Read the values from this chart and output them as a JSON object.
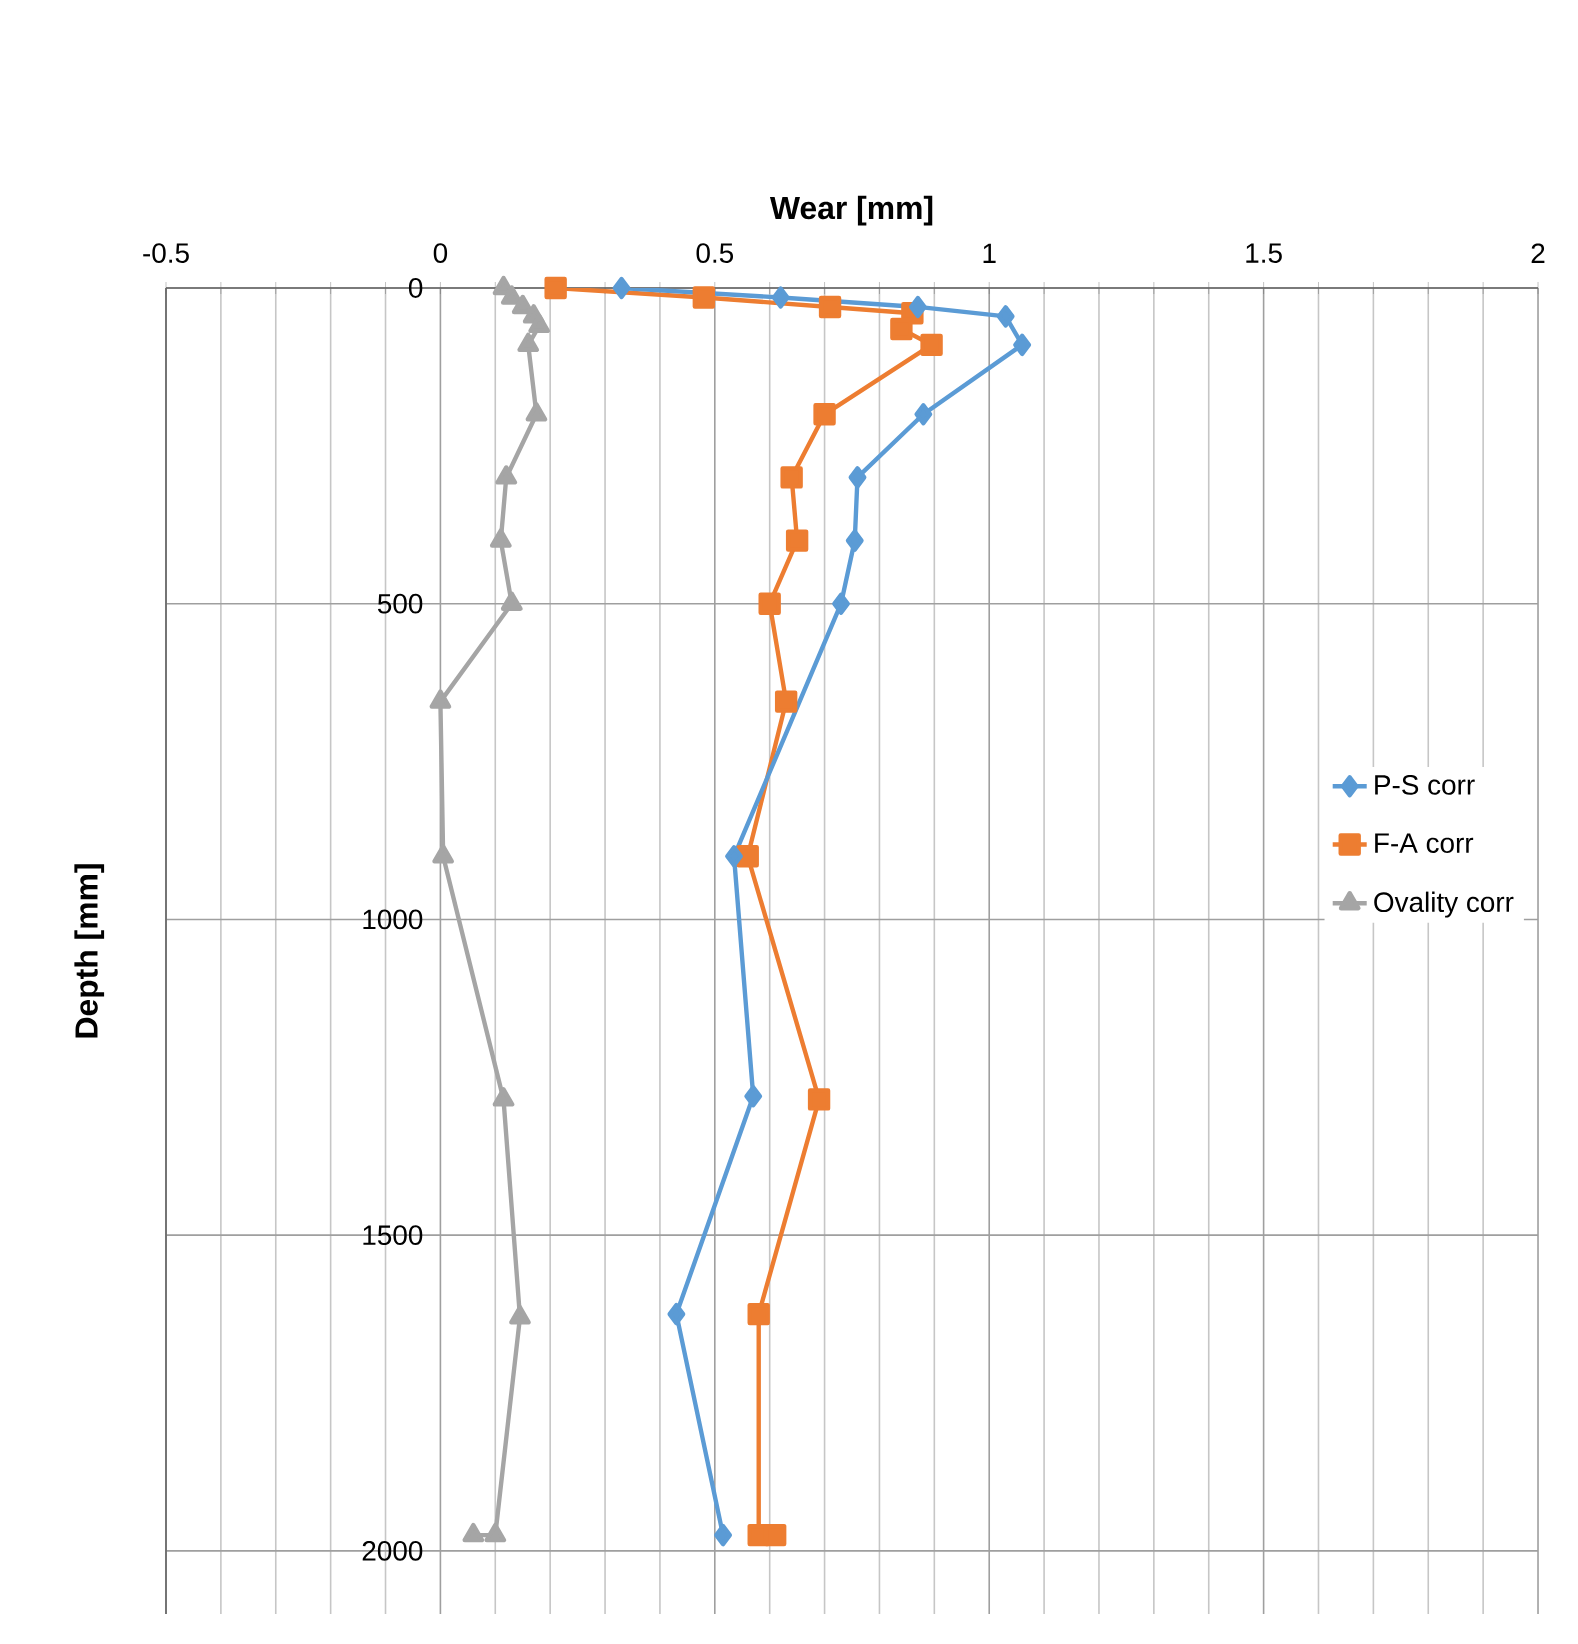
{
  "chart_data": {
    "type": "line",
    "xlabel": "Wear [mm]",
    "ylabel": "Depth [mm]",
    "xlim": [
      -0.5,
      2
    ],
    "xticks": [
      -0.5,
      0,
      0.5,
      1,
      1.5,
      2
    ],
    "ylim": [
      2100,
      0
    ],
    "yticks": [
      0,
      500,
      1000,
      1500,
      2000
    ],
    "grid": true,
    "legend": "right",
    "series": [
      {
        "name": "P-S corr",
        "color": "#5b9bd5",
        "marker": "diamond",
        "x": [
          0.33,
          0.62,
          0.87,
          1.03,
          1.06,
          0.88,
          0.76,
          0.755,
          0.73,
          0.535,
          0.57,
          0.43,
          0.515
        ],
        "values": [
          0,
          15,
          30,
          45,
          90,
          200,
          300,
          400,
          500,
          900,
          1280,
          1625,
          1975
        ]
      },
      {
        "name": "F-A corr",
        "color": "#ed7d31",
        "marker": "square",
        "x": [
          0.21,
          0.48,
          0.71,
          0.86,
          0.84,
          0.895,
          0.7,
          0.64,
          0.65,
          0.6,
          0.63,
          0.56,
          0.69,
          0.58,
          0.58,
          0.61
        ],
        "values": [
          0,
          15,
          30,
          40,
          65,
          90,
          200,
          300,
          400,
          500,
          655,
          900,
          1285,
          1625,
          1975,
          1975
        ]
      },
      {
        "name": "Ovality corr",
        "color": "#a5a5a5",
        "marker": "triangle",
        "x": [
          0.115,
          0.13,
          0.15,
          0.17,
          0.18,
          0.16,
          0.175,
          0.12,
          0.11,
          0.13,
          0.0,
          0.005,
          0.115,
          0.145,
          0.1,
          0.06
        ],
        "values": [
          0,
          15,
          30,
          45,
          60,
          90,
          200,
          300,
          400,
          500,
          655,
          900,
          1285,
          1630,
          1975,
          1975
        ]
      }
    ]
  }
}
